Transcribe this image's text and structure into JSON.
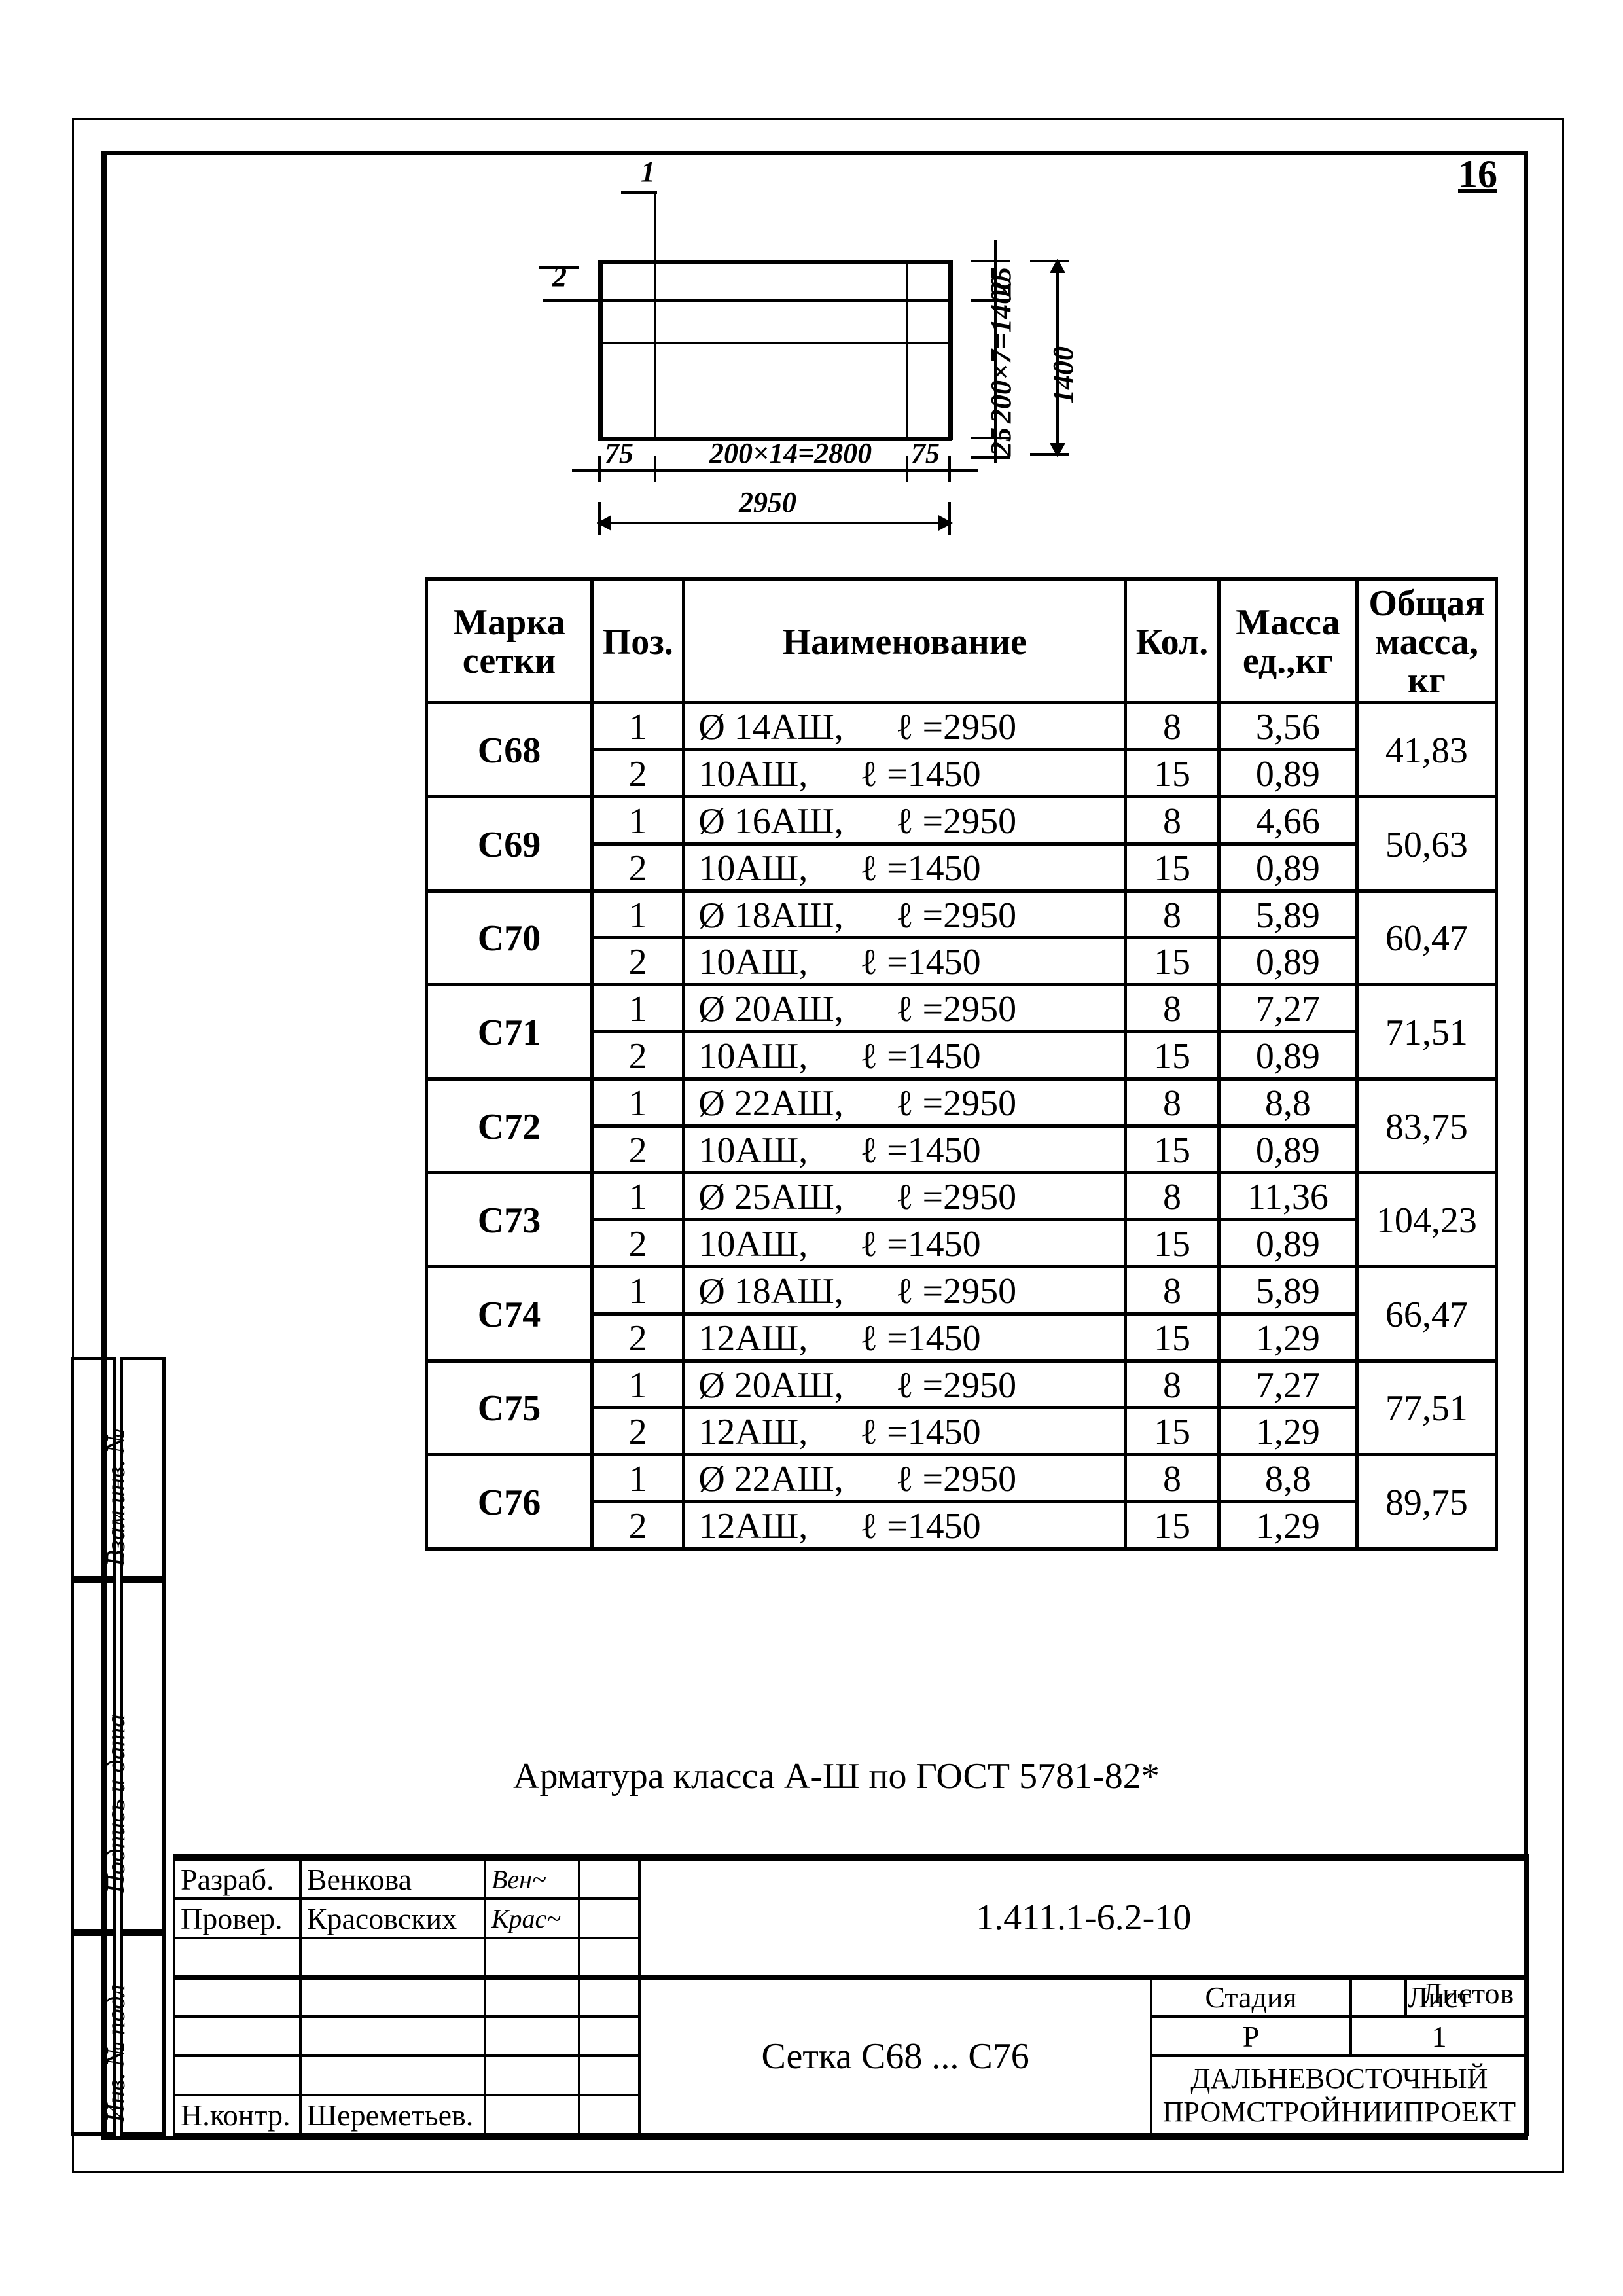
{
  "page_number": "16",
  "diagram": {
    "labels": {
      "bar1": "1",
      "bar2": "2",
      "left75": "75",
      "mid": "200×14=2800",
      "mid2": "2950",
      "right75": "75",
      "right25a": "25",
      "right25b": "25",
      "right200": "200×7=1400",
      "right1400": "1400"
    }
  },
  "table": {
    "headers": {
      "mark": "Марка\nсетки",
      "pos": "Поз.",
      "name": "Наименование",
      "kol": "Кол.",
      "mass_unit": "Масса\nед.,кг",
      "mass_total": "Общая\nмасса,\nкг"
    },
    "groups": [
      {
        "mark": "C68",
        "total": "41,83",
        "rows": [
          {
            "pos": "1",
            "name": "Ø 14АШ,",
            "len": "ℓ =2950",
            "kol": "8",
            "mu": "3,56"
          },
          {
            "pos": "2",
            "name": "10АШ,",
            "len": "ℓ =1450",
            "kol": "15",
            "mu": "0,89"
          }
        ]
      },
      {
        "mark": "C69",
        "total": "50,63",
        "rows": [
          {
            "pos": "1",
            "name": "Ø 16АШ,",
            "len": "ℓ =2950",
            "kol": "8",
            "mu": "4,66"
          },
          {
            "pos": "2",
            "name": "10АШ,",
            "len": "ℓ =1450",
            "kol": "15",
            "mu": "0,89"
          }
        ]
      },
      {
        "mark": "C70",
        "total": "60,47",
        "rows": [
          {
            "pos": "1",
            "name": "Ø 18АШ,",
            "len": "ℓ =2950",
            "kol": "8",
            "mu": "5,89"
          },
          {
            "pos": "2",
            "name": "10АШ,",
            "len": "ℓ =1450",
            "kol": "15",
            "mu": "0,89"
          }
        ]
      },
      {
        "mark": "C71",
        "total": "71,51",
        "rows": [
          {
            "pos": "1",
            "name": "Ø 20АШ,",
            "len": "ℓ =2950",
            "kol": "8",
            "mu": "7,27"
          },
          {
            "pos": "2",
            "name": "10АШ,",
            "len": "ℓ =1450",
            "kol": "15",
            "mu": "0,89"
          }
        ]
      },
      {
        "mark": "C72",
        "total": "83,75",
        "rows": [
          {
            "pos": "1",
            "name": "Ø 22АШ,",
            "len": "ℓ =2950",
            "kol": "8",
            "mu": "8,8"
          },
          {
            "pos": "2",
            "name": "10АШ,",
            "len": "ℓ =1450",
            "kol": "15",
            "mu": "0,89"
          }
        ]
      },
      {
        "mark": "C73",
        "total": "104,23",
        "rows": [
          {
            "pos": "1",
            "name": "Ø 25АШ,",
            "len": "ℓ =2950",
            "kol": "8",
            "mu": "11,36"
          },
          {
            "pos": "2",
            "name": "10АШ,",
            "len": "ℓ =1450",
            "kol": "15",
            "mu": "0,89"
          }
        ]
      },
      {
        "mark": "C74",
        "total": "66,47",
        "rows": [
          {
            "pos": "1",
            "name": "Ø 18АШ,",
            "len": "ℓ =2950",
            "kol": "8",
            "mu": "5,89"
          },
          {
            "pos": "2",
            "name": "12АШ,",
            "len": "ℓ =1450",
            "kol": "15",
            "mu": "1,29"
          }
        ]
      },
      {
        "mark": "C75",
        "total": "77,51",
        "rows": [
          {
            "pos": "1",
            "name": "Ø 20АШ,",
            "len": "ℓ =2950",
            "kol": "8",
            "mu": "7,27"
          },
          {
            "pos": "2",
            "name": "12АШ,",
            "len": "ℓ =1450",
            "kol": "15",
            "mu": "1,29"
          }
        ]
      },
      {
        "mark": "C76",
        "total": "89,75",
        "rows": [
          {
            "pos": "1",
            "name": "Ø 22АШ,",
            "len": "ℓ =2950",
            "kol": "8",
            "mu": "8,8"
          },
          {
            "pos": "2",
            "name": "12АШ,",
            "len": "ℓ =1450",
            "kol": "15",
            "mu": "1,29"
          }
        ]
      }
    ]
  },
  "note": "Арматура класса А-Ш по ГОСТ 5781-82*",
  "stamp": {
    "razrab_role": "Разраб.",
    "razrab_name": "Венкова",
    "prover_role": "Провер.",
    "prover_name": "Красовских",
    "nkontr_role": "Н.контр.",
    "nkontr_name": "Шереметьев.",
    "doc_code": "1.411.1-6.2-10",
    "title": "Сетка C68 ... C76",
    "stage_h": "Стадия",
    "sheet_h": "Лист",
    "sheets_h": "Листов",
    "stage": "Р",
    "sheet": "",
    "sheets": "1",
    "org": "ДАЛЬНЕВОСТОЧНЫЙ\nПРОМСТРОЙНИИПРОЕКТ"
  },
  "side": {
    "inv": "Инв. № подл",
    "sign": "Подпись и дата",
    "vzam": "Взам.инв. №"
  }
}
